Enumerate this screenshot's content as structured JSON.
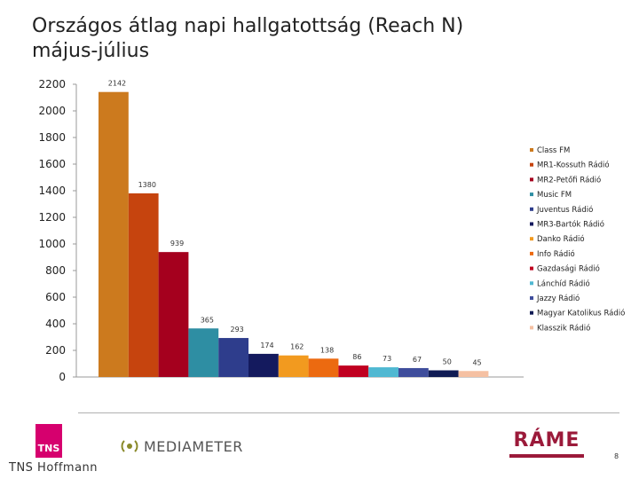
{
  "title": "Országos átlag napi hallgatottság (Reach N)\nmájus-július",
  "chart_data": {
    "type": "bar",
    "title": "Országos átlag napi hallgatottság (Reach N)\nmájus-július",
    "xlabel": "",
    "ylabel": "",
    "ylim": [
      0,
      2200
    ],
    "yticks": [
      0,
      200,
      400,
      600,
      800,
      1000,
      1200,
      1400,
      1600,
      1800,
      2000,
      2200
    ],
    "grid": false,
    "legend_position": "right",
    "categories": [
      "Class FM",
      "MR1-Kossuth Rádió",
      "MR2-Petőfi Rádió",
      "Music FM",
      "Juventus Rádió",
      "MR3-Bartók Rádió",
      "Danko Rádió",
      "Info Rádió",
      "Gazdasági Rádió",
      "Lánchíd Rádió",
      "Jazzy Rádió",
      "Magyar Katolikus Rádió",
      "Klasszik Rádió"
    ],
    "values": [
      2142,
      1380,
      939,
      365,
      293,
      174,
      162,
      138,
      86,
      73,
      67,
      50,
      45
    ],
    "colors": [
      "#cc7a1e",
      "#c6440e",
      "#a5001e",
      "#2e8ea3",
      "#2e3d8c",
      "#141a5e",
      "#f29a1f",
      "#ec6a10",
      "#c00020",
      "#50b8d2",
      "#3f4d9c",
      "#101b54",
      "#f5c0a2"
    ]
  },
  "footer": {
    "company": "TNS Hoffmann",
    "tns_logo": "TNS",
    "mediameter": "MEDIAMETER",
    "rame": "RÁME",
    "page_number": "8"
  }
}
